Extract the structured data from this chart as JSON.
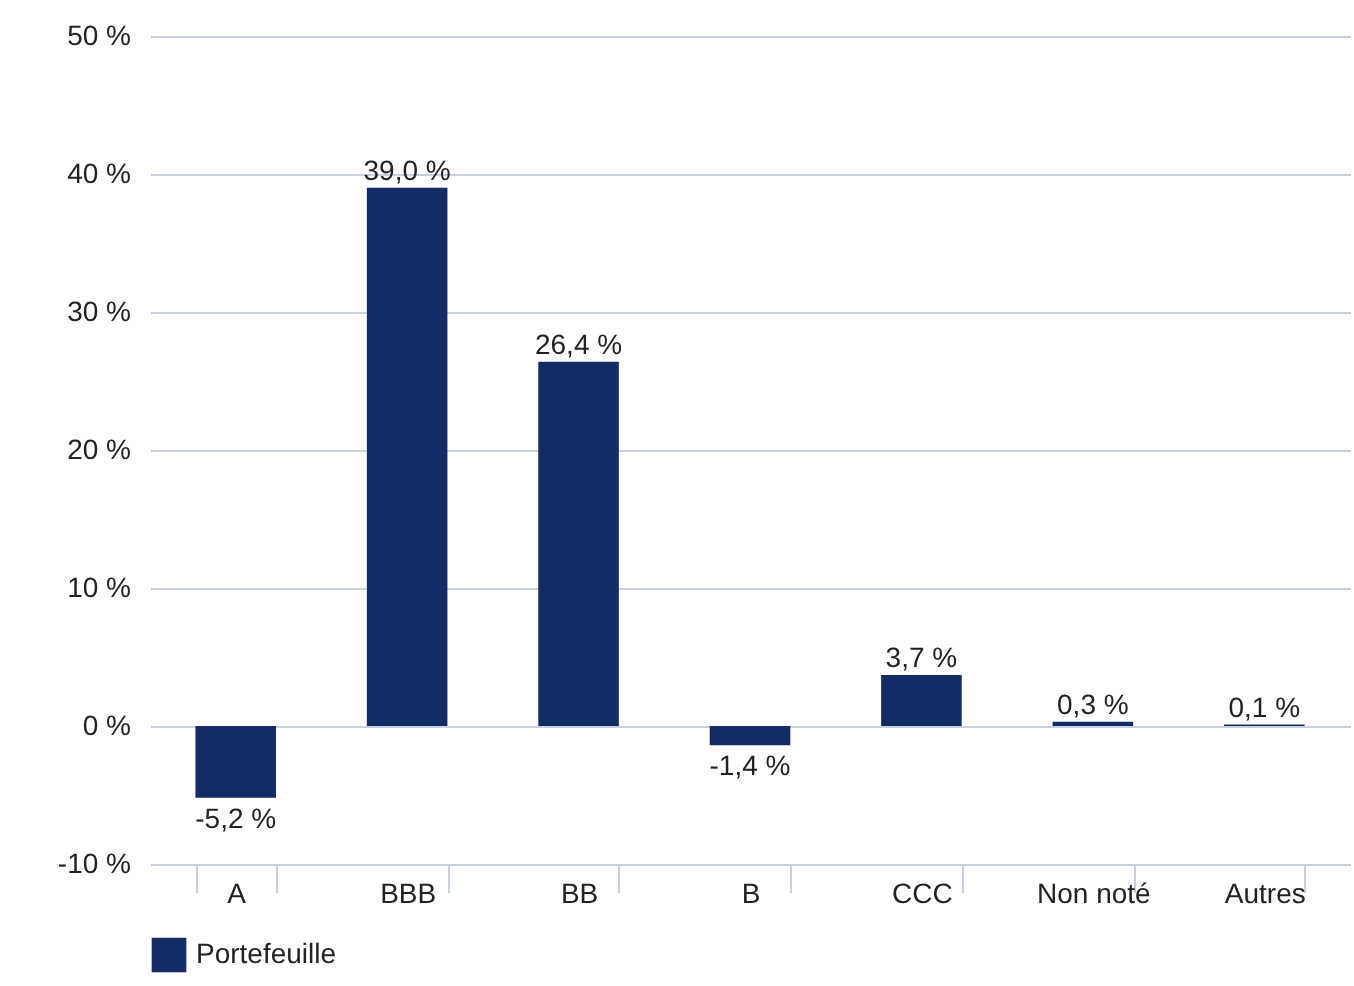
{
  "chart_data": {
    "type": "bar",
    "categories": [
      "A",
      "BBB",
      "BB",
      "B",
      "CCC",
      "Non noté",
      "Autres"
    ],
    "series": [
      {
        "name": "Portefeuille",
        "color": "#142c66",
        "values": [
          -5.2,
          39.0,
          26.4,
          -1.4,
          3.7,
          0.3,
          0.1
        ],
        "value_labels": [
          "-5,2 %",
          "39,0 %",
          "26,4 %",
          "-1,4 %",
          "3,7 %",
          "0,3 %",
          "0,1 %"
        ]
      }
    ],
    "ylim": [
      -10,
      50
    ],
    "yticks": [
      {
        "value": -10,
        "label": "-10 %"
      },
      {
        "value": 0,
        "label": "0 %"
      },
      {
        "value": 10,
        "label": "10 %"
      },
      {
        "value": 20,
        "label": "20 %"
      },
      {
        "value": 30,
        "label": "30 %"
      },
      {
        "value": 40,
        "label": "40 %"
      },
      {
        "value": 50,
        "label": "50 %"
      }
    ],
    "grid": "y",
    "legend": "bottom"
  }
}
